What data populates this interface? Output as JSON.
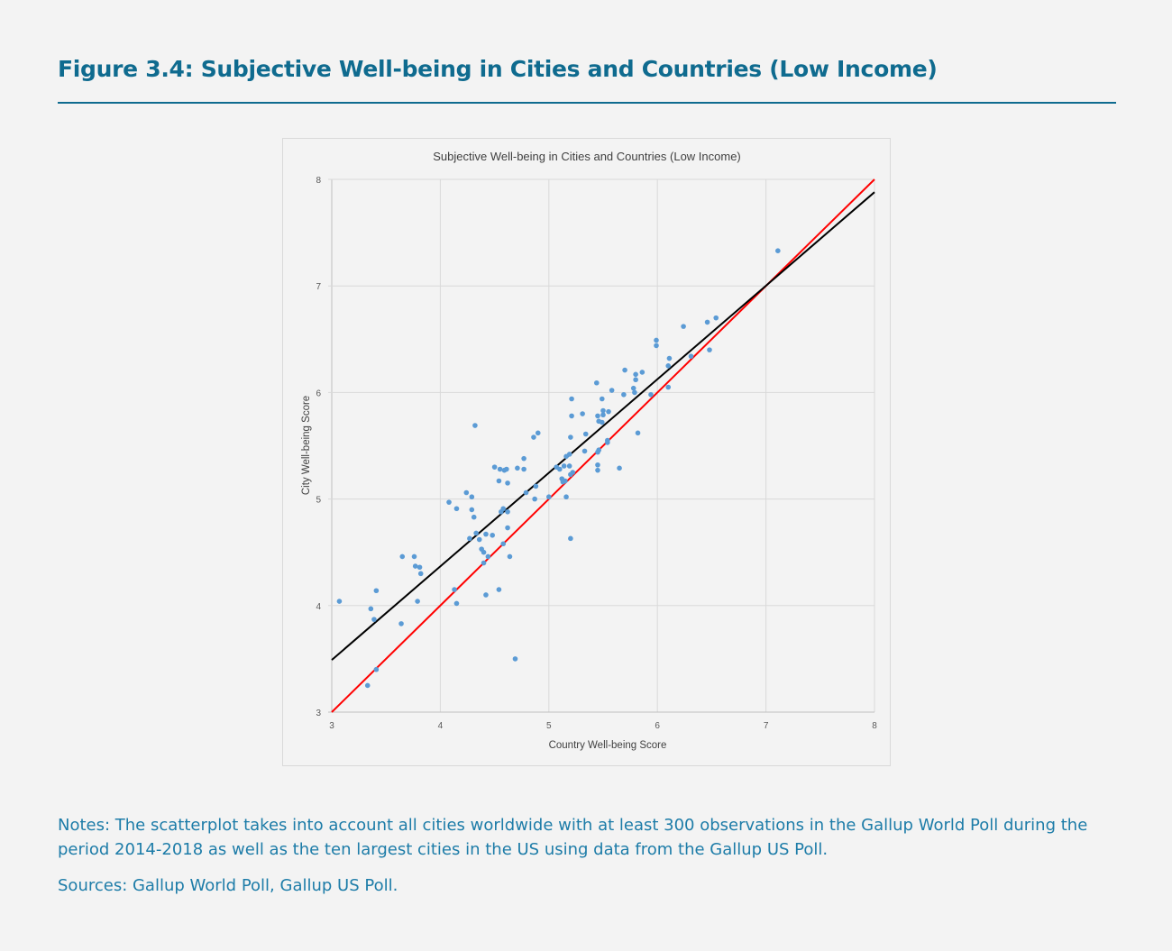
{
  "figure": {
    "title": "Figure 3.4: Subjective Well-being in Cities and Countries (Low Income)",
    "notes": "Notes: The scatterplot takes into account all cities worldwide with at least 300 observations in the Gallup World Poll during the period 2014-2018 as well as the ten largest cities in the US using data from the Gallup US Poll.",
    "sources": "Sources: Gallup World Poll, Gallup US Poll."
  },
  "chart_data": {
    "type": "scatter",
    "title": "Subjective Well-being in Cities and Countries (Low Income)",
    "xlabel": "Country Well-being Score",
    "ylabel": "City Well-being Score",
    "xlim": [
      3,
      8
    ],
    "ylim": [
      3,
      8
    ],
    "xticks": [
      "3",
      "4",
      "5",
      "6",
      "7",
      "8"
    ],
    "yticks": [
      "3",
      "4",
      "5",
      "6",
      "7",
      "8"
    ],
    "grid": true,
    "point_color": "#5b9bd5",
    "fit_line": {
      "color": "#000000",
      "from": [
        3,
        3.49
      ],
      "to": [
        8,
        7.88
      ]
    },
    "identity_line": {
      "color": "#ff0000",
      "from": [
        3,
        3
      ],
      "to": [
        8,
        8
      ]
    },
    "points": [
      [
        3.07,
        4.04
      ],
      [
        3.36,
        3.97
      ],
      [
        3.39,
        3.87
      ],
      [
        3.41,
        4.14
      ],
      [
        3.41,
        3.4
      ],
      [
        3.33,
        3.25
      ],
      [
        3.64,
        3.83
      ],
      [
        3.65,
        4.46
      ],
      [
        3.76,
        4.46
      ],
      [
        3.77,
        4.37
      ],
      [
        3.81,
        4.36
      ],
      [
        3.82,
        4.3
      ],
      [
        3.79,
        4.04
      ],
      [
        4.08,
        4.97
      ],
      [
        4.15,
        4.91
      ],
      [
        4.13,
        4.15
      ],
      [
        4.15,
        4.02
      ],
      [
        4.24,
        5.06
      ],
      [
        4.29,
        5.02
      ],
      [
        4.29,
        4.9
      ],
      [
        4.31,
        4.83
      ],
      [
        4.32,
        5.69
      ],
      [
        4.27,
        4.63
      ],
      [
        4.33,
        4.68
      ],
      [
        4.36,
        4.62
      ],
      [
        4.38,
        4.53
      ],
      [
        4.4,
        4.5
      ],
      [
        4.44,
        4.46
      ],
      [
        4.42,
        4.67
      ],
      [
        4.48,
        4.66
      ],
      [
        4.4,
        4.4
      ],
      [
        4.42,
        4.1
      ],
      [
        4.5,
        5.3
      ],
      [
        4.55,
        5.28
      ],
      [
        4.59,
        5.27
      ],
      [
        4.61,
        5.28
      ],
      [
        4.54,
        5.17
      ],
      [
        4.62,
        5.15
      ],
      [
        4.56,
        4.88
      ],
      [
        4.58,
        4.91
      ],
      [
        4.62,
        4.88
      ],
      [
        4.62,
        4.73
      ],
      [
        4.58,
        4.58
      ],
      [
        4.64,
        4.46
      ],
      [
        4.54,
        4.15
      ],
      [
        4.69,
        3.5
      ],
      [
        4.71,
        5.29
      ],
      [
        4.77,
        5.38
      ],
      [
        4.77,
        5.28
      ],
      [
        4.79,
        5.06
      ],
      [
        4.86,
        5.58
      ],
      [
        4.9,
        5.62
      ],
      [
        4.88,
        5.12
      ],
      [
        4.87,
        5.0
      ],
      [
        5.0,
        5.02
      ],
      [
        5.07,
        5.3
      ],
      [
        5.1,
        5.28
      ],
      [
        5.12,
        5.19
      ],
      [
        5.13,
        5.16
      ],
      [
        5.15,
        5.17
      ],
      [
        5.14,
        5.31
      ],
      [
        5.16,
        5.4
      ],
      [
        5.19,
        5.42
      ],
      [
        5.19,
        5.31
      ],
      [
        5.2,
        5.23
      ],
      [
        5.22,
        5.25
      ],
      [
        5.2,
        5.58
      ],
      [
        5.21,
        5.78
      ],
      [
        5.21,
        5.94
      ],
      [
        5.16,
        5.02
      ],
      [
        5.2,
        4.63
      ],
      [
        5.31,
        5.8
      ],
      [
        5.33,
        5.45
      ],
      [
        5.34,
        5.61
      ],
      [
        5.44,
        6.09
      ],
      [
        5.45,
        5.44
      ],
      [
        5.46,
        5.46
      ],
      [
        5.45,
        5.32
      ],
      [
        5.45,
        5.27
      ],
      [
        5.45,
        5.78
      ],
      [
        5.46,
        5.73
      ],
      [
        5.49,
        5.72
      ],
      [
        5.5,
        5.83
      ],
      [
        5.5,
        5.79
      ],
      [
        5.49,
        5.94
      ],
      [
        5.55,
        5.82
      ],
      [
        5.54,
        5.53
      ],
      [
        5.54,
        5.55
      ],
      [
        5.58,
        6.02
      ],
      [
        5.65,
        5.29
      ],
      [
        5.69,
        5.98
      ],
      [
        5.7,
        6.21
      ],
      [
        5.78,
        6.04
      ],
      [
        5.79,
        6.0
      ],
      [
        5.8,
        6.12
      ],
      [
        5.8,
        6.17
      ],
      [
        5.86,
        6.19
      ],
      [
        5.82,
        5.62
      ],
      [
        5.94,
        5.98
      ],
      [
        5.99,
        6.49
      ],
      [
        5.99,
        6.44
      ],
      [
        6.1,
        6.25
      ],
      [
        6.11,
        6.32
      ],
      [
        6.1,
        6.05
      ],
      [
        6.24,
        6.62
      ],
      [
        6.31,
        6.34
      ],
      [
        6.46,
        6.66
      ],
      [
        6.48,
        6.4
      ],
      [
        6.54,
        6.7
      ],
      [
        7.11,
        7.33
      ]
    ]
  }
}
